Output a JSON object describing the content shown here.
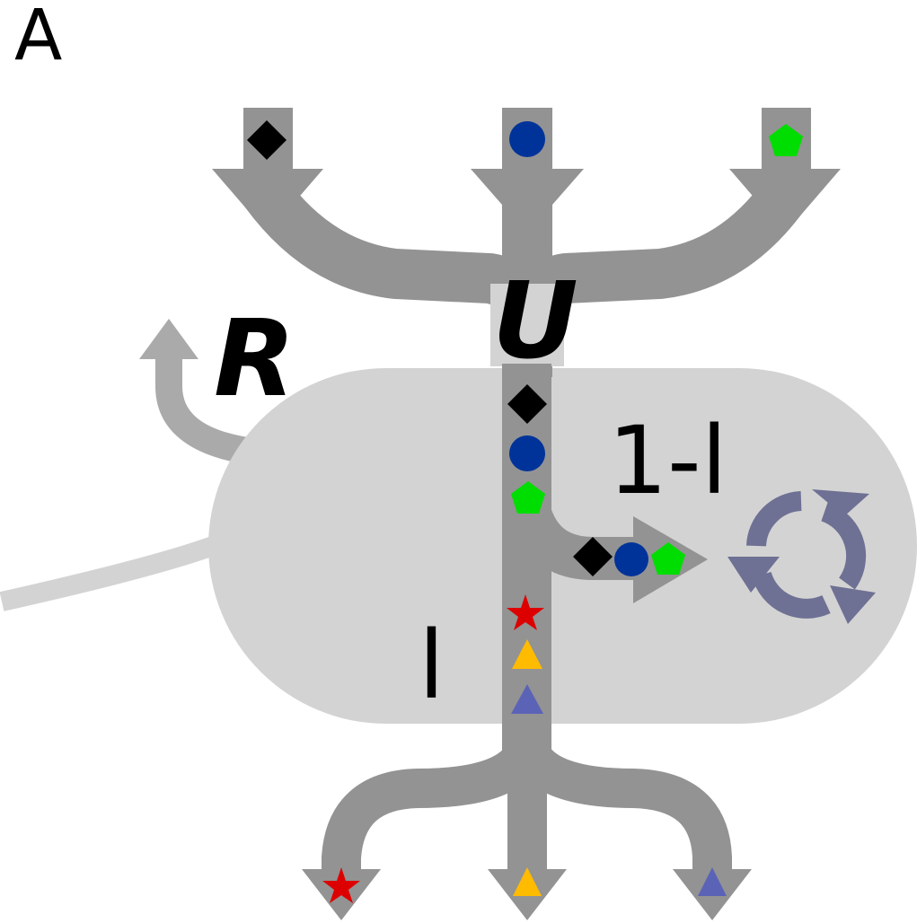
{
  "panel_label": "A",
  "labels": {
    "uptake": "U",
    "release": "R",
    "retained_fraction": "1-l",
    "lost_fraction": "l"
  },
  "colors": {
    "cell_fill": "#d3d3d3",
    "flow_arrow": "#939393",
    "release_arrow": "#aaaaaa",
    "recycle_icon": "#6e7094",
    "tail": "#d3d3d3",
    "diamond": "#000000",
    "circle": "#003399",
    "pentagon": "#00dd00",
    "star": "#dd0000",
    "triangle_yellow": "#ffbb00",
    "triangle_blue": "#5b63b7"
  },
  "icons": {
    "inputs": [
      "diamond",
      "circle",
      "pentagon"
    ],
    "outputs": [
      "star",
      "triangle-yellow",
      "triangle-blue"
    ],
    "recycle": "recycle-icon"
  }
}
